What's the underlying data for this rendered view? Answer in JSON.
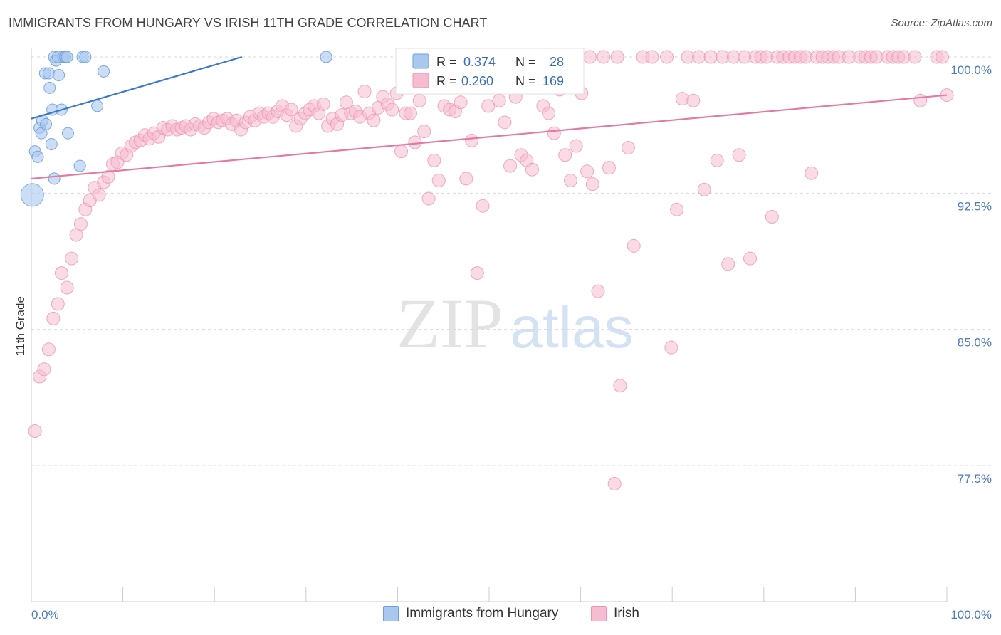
{
  "header": {
    "title": "IMMIGRANTS FROM HUNGARY VS IRISH 11TH GRADE CORRELATION CHART",
    "source": "Source: ZipAtlas.com"
  },
  "watermark": {
    "zip": "ZIP",
    "atlas": "atlas"
  },
  "colors": {
    "blue_fill": "#a9c8ef",
    "blue_stroke": "#6f9fdc",
    "blue_line": "#3a78d0",
    "pink_fill": "#f6bcd0",
    "pink_stroke": "#ee94b3",
    "pink_line": "#e57aa1",
    "grid": "#d9d9d9",
    "tick_label": "#4a78c2"
  },
  "legend_stats": [
    {
      "r_label": "R =",
      "r_value": "0.374",
      "n_label": "N =",
      "n_value": "28"
    },
    {
      "r_label": "R =",
      "r_value": "0.260",
      "n_label": "N =",
      "n_value": "169"
    }
  ],
  "chart_data": {
    "type": "scatter",
    "title": "IMMIGRANTS FROM HUNGARY VS IRISH 11TH GRADE CORRELATION CHART",
    "xlabel": "",
    "ylabel": "11th Grade",
    "xlim": [
      0,
      100
    ],
    "ylim": [
      70.4,
      100.6
    ],
    "x_tick_labels": [
      "0.0%",
      "100.0%"
    ],
    "y_ticks": [
      77.5,
      85.0,
      92.5,
      100.0
    ],
    "y_tick_labels": [
      "77.5%",
      "85.0%",
      "92.5%",
      "100.0%"
    ],
    "grid": true,
    "legend_position": "bottom",
    "series": [
      {
        "name": "Immigrants from Hungary",
        "r": 0.374,
        "n": 28,
        "trend": {
          "x": [
            0,
            23
          ],
          "y": [
            96.6,
            100.0
          ]
        },
        "points": [
          {
            "x": 0.1,
            "y": 92.4,
            "big": true
          },
          {
            "x": 0.4,
            "y": 94.8
          },
          {
            "x": 0.7,
            "y": 94.5
          },
          {
            "x": 0.9,
            "y": 96.1
          },
          {
            "x": 1.1,
            "y": 95.8
          },
          {
            "x": 1.2,
            "y": 96.5
          },
          {
            "x": 1.5,
            "y": 99.1
          },
          {
            "x": 1.6,
            "y": 96.3
          },
          {
            "x": 1.9,
            "y": 99.1
          },
          {
            "x": 2.0,
            "y": 98.3
          },
          {
            "x": 2.2,
            "y": 95.2
          },
          {
            "x": 2.3,
            "y": 97.1
          },
          {
            "x": 2.5,
            "y": 93.3
          },
          {
            "x": 2.5,
            "y": 100.0
          },
          {
            "x": 2.7,
            "y": 99.8
          },
          {
            "x": 2.9,
            "y": 100.0
          },
          {
            "x": 3.0,
            "y": 99.0
          },
          {
            "x": 3.3,
            "y": 97.1
          },
          {
            "x": 3.5,
            "y": 100.0
          },
          {
            "x": 3.7,
            "y": 100.0
          },
          {
            "x": 3.9,
            "y": 100.0
          },
          {
            "x": 4.0,
            "y": 95.8
          },
          {
            "x": 5.3,
            "y": 94.0
          },
          {
            "x": 5.6,
            "y": 100.0
          },
          {
            "x": 5.9,
            "y": 100.0
          },
          {
            "x": 7.2,
            "y": 97.3
          },
          {
            "x": 7.9,
            "y": 99.2
          },
          {
            "x": 32.2,
            "y": 100.0
          }
        ]
      },
      {
        "name": "Irish",
        "r": 0.26,
        "n": 169,
        "trend": {
          "x": [
            0,
            100
          ],
          "y": [
            93.3,
            97.9
          ]
        },
        "points": [
          {
            "x": 0.4,
            "y": 79.4
          },
          {
            "x": 0.9,
            "y": 82.4
          },
          {
            "x": 1.4,
            "y": 82.8
          },
          {
            "x": 1.9,
            "y": 83.9
          },
          {
            "x": 2.4,
            "y": 85.6
          },
          {
            "x": 2.9,
            "y": 86.4
          },
          {
            "x": 3.3,
            "y": 88.1
          },
          {
            "x": 3.9,
            "y": 87.3
          },
          {
            "x": 4.4,
            "y": 88.9
          },
          {
            "x": 4.9,
            "y": 90.2
          },
          {
            "x": 5.4,
            "y": 90.8
          },
          {
            "x": 5.9,
            "y": 91.6
          },
          {
            "x": 6.4,
            "y": 92.1
          },
          {
            "x": 6.9,
            "y": 92.8
          },
          {
            "x": 7.4,
            "y": 92.4
          },
          {
            "x": 7.9,
            "y": 93.1
          },
          {
            "x": 8.4,
            "y": 93.4
          },
          {
            "x": 8.9,
            "y": 94.1
          },
          {
            "x": 9.4,
            "y": 94.2
          },
          {
            "x": 9.9,
            "y": 94.7
          },
          {
            "x": 10.4,
            "y": 94.6
          },
          {
            "x": 10.9,
            "y": 95.1
          },
          {
            "x": 11.4,
            "y": 95.3
          },
          {
            "x": 11.9,
            "y": 95.4
          },
          {
            "x": 12.4,
            "y": 95.7
          },
          {
            "x": 12.9,
            "y": 95.5
          },
          {
            "x": 13.4,
            "y": 95.8
          },
          {
            "x": 13.9,
            "y": 95.6
          },
          {
            "x": 14.4,
            "y": 96.1
          },
          {
            "x": 14.9,
            "y": 96.0
          },
          {
            "x": 15.4,
            "y": 96.2
          },
          {
            "x": 15.9,
            "y": 96.0
          },
          {
            "x": 16.4,
            "y": 96.1
          },
          {
            "x": 16.9,
            "y": 96.2
          },
          {
            "x": 17.4,
            "y": 96.0
          },
          {
            "x": 17.9,
            "y": 96.3
          },
          {
            "x": 18.4,
            "y": 96.2
          },
          {
            "x": 18.9,
            "y": 96.1
          },
          {
            "x": 19.4,
            "y": 96.4
          },
          {
            "x": 19.9,
            "y": 96.6
          },
          {
            "x": 20.4,
            "y": 96.4
          },
          {
            "x": 20.9,
            "y": 96.5
          },
          {
            "x": 21.4,
            "y": 96.6
          },
          {
            "x": 21.9,
            "y": 96.3
          },
          {
            "x": 22.4,
            "y": 96.5
          },
          {
            "x": 22.9,
            "y": 96.0
          },
          {
            "x": 23.4,
            "y": 96.4
          },
          {
            "x": 23.9,
            "y": 96.7
          },
          {
            "x": 24.4,
            "y": 96.5
          },
          {
            "x": 24.9,
            "y": 96.9
          },
          {
            "x": 25.4,
            "y": 96.7
          },
          {
            "x": 25.9,
            "y": 96.9
          },
          {
            "x": 26.4,
            "y": 96.7
          },
          {
            "x": 26.9,
            "y": 97.0
          },
          {
            "x": 27.4,
            "y": 97.3
          },
          {
            "x": 27.9,
            "y": 96.8
          },
          {
            "x": 28.4,
            "y": 97.1
          },
          {
            "x": 28.9,
            "y": 96.2
          },
          {
            "x": 29.4,
            "y": 96.6
          },
          {
            "x": 29.9,
            "y": 96.9
          },
          {
            "x": 30.4,
            "y": 97.1
          },
          {
            "x": 30.9,
            "y": 97.3
          },
          {
            "x": 31.4,
            "y": 96.9
          },
          {
            "x": 31.9,
            "y": 97.4
          },
          {
            "x": 32.4,
            "y": 96.2
          },
          {
            "x": 32.9,
            "y": 96.6
          },
          {
            "x": 33.4,
            "y": 96.3
          },
          {
            "x": 33.9,
            "y": 96.8
          },
          {
            "x": 34.4,
            "y": 97.5
          },
          {
            "x": 34.9,
            "y": 96.9
          },
          {
            "x": 35.4,
            "y": 97.0
          },
          {
            "x": 35.9,
            "y": 96.7
          },
          {
            "x": 36.4,
            "y": 98.1
          },
          {
            "x": 36.9,
            "y": 96.9
          },
          {
            "x": 37.4,
            "y": 96.5
          },
          {
            "x": 37.9,
            "y": 97.2
          },
          {
            "x": 38.4,
            "y": 97.8
          },
          {
            "x": 38.9,
            "y": 97.4
          },
          {
            "x": 39.4,
            "y": 97.1
          },
          {
            "x": 39.9,
            "y": 98.0
          },
          {
            "x": 40.4,
            "y": 94.8
          },
          {
            "x": 40.9,
            "y": 96.9
          },
          {
            "x": 41.4,
            "y": 96.9
          },
          {
            "x": 41.9,
            "y": 95.3
          },
          {
            "x": 42.4,
            "y": 97.6
          },
          {
            "x": 42.9,
            "y": 95.9
          },
          {
            "x": 43.4,
            "y": 92.2
          },
          {
            "x": 44.0,
            "y": 94.3
          },
          {
            "x": 44.5,
            "y": 93.2
          },
          {
            "x": 45.1,
            "y": 97.3
          },
          {
            "x": 45.7,
            "y": 97.1
          },
          {
            "x": 46.3,
            "y": 97.0
          },
          {
            "x": 46.9,
            "y": 97.5
          },
          {
            "x": 47.5,
            "y": 93.3
          },
          {
            "x": 48.1,
            "y": 95.4
          },
          {
            "x": 48.7,
            "y": 88.1
          },
          {
            "x": 49.3,
            "y": 91.8
          },
          {
            "x": 49.9,
            "y": 97.3
          },
          {
            "x": 50.5,
            "y": 98.4
          },
          {
            "x": 51.1,
            "y": 97.6
          },
          {
            "x": 51.7,
            "y": 96.4
          },
          {
            "x": 52.3,
            "y": 94.0
          },
          {
            "x": 52.9,
            "y": 97.8
          },
          {
            "x": 53.5,
            "y": 94.6
          },
          {
            "x": 54.1,
            "y": 94.3
          },
          {
            "x": 54.7,
            "y": 93.8
          },
          {
            "x": 55.3,
            "y": 98.8
          },
          {
            "x": 55.9,
            "y": 97.3
          },
          {
            "x": 56.5,
            "y": 96.9
          },
          {
            "x": 57.1,
            "y": 95.8
          },
          {
            "x": 57.7,
            "y": 98.2
          },
          {
            "x": 58.3,
            "y": 94.6
          },
          {
            "x": 58.9,
            "y": 93.2
          },
          {
            "x": 59.5,
            "y": 95.1
          },
          {
            "x": 60.1,
            "y": 98.0
          },
          {
            "x": 60.7,
            "y": 93.7
          },
          {
            "x": 61.3,
            "y": 93.0
          },
          {
            "x": 61.9,
            "y": 87.1
          },
          {
            "x": 62.5,
            "y": 100.0
          },
          {
            "x": 63.1,
            "y": 93.9
          },
          {
            "x": 63.7,
            "y": 76.5
          },
          {
            "x": 64.3,
            "y": 81.9
          },
          {
            "x": 65.2,
            "y": 95.0
          },
          {
            "x": 65.8,
            "y": 89.6
          },
          {
            "x": 66.8,
            "y": 100.0
          },
          {
            "x": 67.8,
            "y": 100.0
          },
          {
            "x": 69.4,
            "y": 100.0
          },
          {
            "x": 69.9,
            "y": 84.0
          },
          {
            "x": 70.5,
            "y": 91.6
          },
          {
            "x": 71.1,
            "y": 97.7
          },
          {
            "x": 71.7,
            "y": 100.0
          },
          {
            "x": 72.3,
            "y": 97.6
          },
          {
            "x": 72.9,
            "y": 100.0
          },
          {
            "x": 73.5,
            "y": 92.7
          },
          {
            "x": 74.2,
            "y": 100.0
          },
          {
            "x": 74.9,
            "y": 94.3
          },
          {
            "x": 75.5,
            "y": 100.0
          },
          {
            "x": 76.1,
            "y": 88.6
          },
          {
            "x": 76.7,
            "y": 100.0
          },
          {
            "x": 77.3,
            "y": 94.6
          },
          {
            "x": 77.9,
            "y": 100.0
          },
          {
            "x": 78.5,
            "y": 88.9
          },
          {
            "x": 79.1,
            "y": 100.0
          },
          {
            "x": 79.7,
            "y": 100.0
          },
          {
            "x": 80.3,
            "y": 100.0
          },
          {
            "x": 80.9,
            "y": 91.2
          },
          {
            "x": 81.5,
            "y": 100.0
          },
          {
            "x": 82.1,
            "y": 100.0
          },
          {
            "x": 82.8,
            "y": 100.0
          },
          {
            "x": 83.4,
            "y": 100.0
          },
          {
            "x": 84.0,
            "y": 100.0
          },
          {
            "x": 84.6,
            "y": 100.0
          },
          {
            "x": 85.2,
            "y": 93.6
          },
          {
            "x": 85.8,
            "y": 100.0
          },
          {
            "x": 86.4,
            "y": 100.0
          },
          {
            "x": 87.0,
            "y": 100.0
          },
          {
            "x": 87.6,
            "y": 100.0
          },
          {
            "x": 88.2,
            "y": 100.0
          },
          {
            "x": 89.3,
            "y": 100.0
          },
          {
            "x": 90.5,
            "y": 100.0
          },
          {
            "x": 91.1,
            "y": 100.0
          },
          {
            "x": 91.7,
            "y": 100.0
          },
          {
            "x": 92.3,
            "y": 100.0
          },
          {
            "x": 93.5,
            "y": 100.0
          },
          {
            "x": 94.1,
            "y": 100.0
          },
          {
            "x": 94.7,
            "y": 100.0
          },
          {
            "x": 95.3,
            "y": 100.0
          },
          {
            "x": 96.5,
            "y": 100.0
          },
          {
            "x": 97.1,
            "y": 97.6
          },
          {
            "x": 98.9,
            "y": 100.0
          },
          {
            "x": 99.5,
            "y": 100.0
          },
          {
            "x": 100.0,
            "y": 97.9
          },
          {
            "x": 58.0,
            "y": 100.0
          },
          {
            "x": 61.0,
            "y": 100.0
          },
          {
            "x": 64.0,
            "y": 100.0
          }
        ]
      }
    ]
  }
}
